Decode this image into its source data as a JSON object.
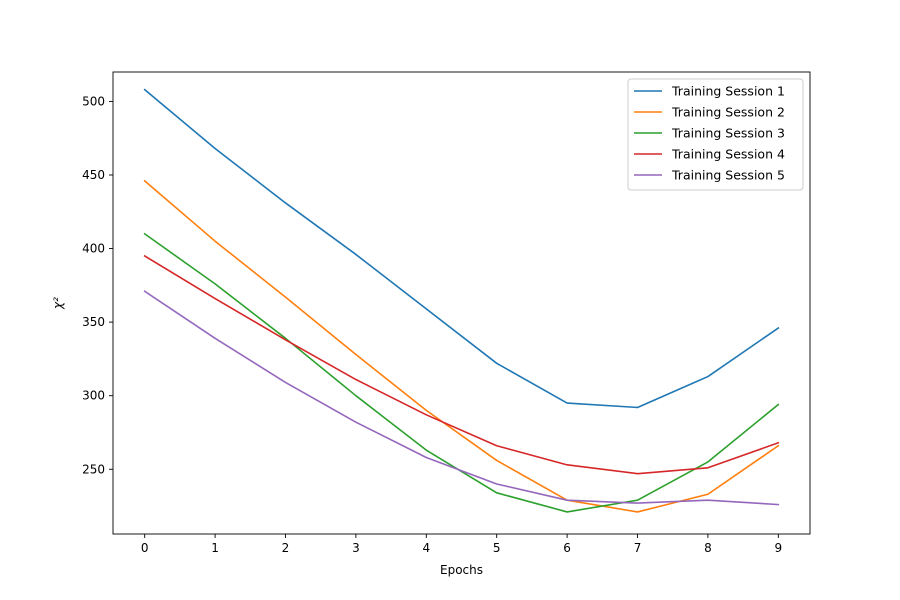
{
  "chart_data": {
    "type": "line",
    "xlabel": "Epochs",
    "ylabel": "χ²",
    "x": [
      0,
      1,
      2,
      3,
      4,
      5,
      6,
      7,
      8,
      9
    ],
    "xlim": [
      -0.45,
      9.45
    ],
    "ylim": [
      206,
      520
    ],
    "xticks": [
      0,
      1,
      2,
      3,
      4,
      5,
      6,
      7,
      8,
      9
    ],
    "yticks": [
      250,
      300,
      350,
      400,
      450,
      500
    ],
    "grid": false,
    "legend_position": "top-right",
    "series": [
      {
        "name": "Training Session 1",
        "color": "#1f77b4",
        "values": [
          508,
          468,
          431,
          396,
          359,
          322,
          295,
          292,
          313,
          346
        ]
      },
      {
        "name": "Training Session 2",
        "color": "#ff7f0e",
        "values": [
          446,
          405,
          367,
          328,
          290,
          256,
          229,
          221,
          233,
          266
        ]
      },
      {
        "name": "Training Session 3",
        "color": "#2ca02c",
        "values": [
          410,
          376,
          339,
          300,
          263,
          234,
          221,
          229,
          255,
          294
        ]
      },
      {
        "name": "Training Session 4",
        "color": "#d62728",
        "values": [
          395,
          366,
          338,
          311,
          287,
          266,
          253,
          247,
          251,
          268
        ]
      },
      {
        "name": "Training Session 5",
        "color": "#9467bd",
        "values": [
          371,
          339,
          309,
          282,
          258,
          240,
          229,
          227,
          229,
          226
        ]
      }
    ]
  }
}
